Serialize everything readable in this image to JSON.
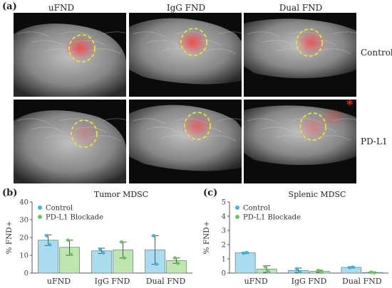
{
  "panel_a": {
    "label": "(a)",
    "columns": [
      "uFND",
      "IgG FND",
      "Dual FND"
    ],
    "rows": [
      "Control",
      "PD-L1"
    ],
    "asterisk": "*"
  },
  "panel_b": {
    "label": "(b)"
  },
  "panel_c": {
    "label": "(c)"
  },
  "colors": {
    "control_fill": "#a9dcef",
    "control_marker": "#3fb6d8",
    "blockade_fill": "#bfe5b0",
    "blockade_marker": "#6cc75a",
    "highlight_circle": "#e8e23a",
    "fluorescence": "#ff3030"
  },
  "chart_data": [
    {
      "type": "bar",
      "title": "Tumor MDSC",
      "ylabel": "% FND+",
      "xlabel": "",
      "categories": [
        "uFND",
        "IgG FND",
        "Dual FND"
      ],
      "ylim": [
        0,
        40
      ],
      "yticks": [
        0,
        10,
        20,
        30,
        40
      ],
      "legend": {
        "placement": "top-left"
      },
      "series": [
        {
          "name": "Control",
          "values": [
            18.5,
            12.5,
            13
          ],
          "err_low": [
            15.5,
            11,
            5
          ],
          "err_high": [
            21.5,
            14,
            21
          ],
          "points": [
            [
              21,
              16
            ],
            [
              13.5,
              11.5
            ],
            [
              21,
              5
            ]
          ]
        },
        {
          "name": "PD-L1 Blockade",
          "values": [
            14.5,
            13,
            7
          ],
          "err_low": [
            10,
            8.5,
            5.5
          ],
          "err_high": [
            18.5,
            17.5,
            8.5
          ],
          "points": [
            [
              18.5,
              10.5
            ],
            [
              17.5,
              8.5
            ],
            [
              8.5,
              5.5
            ]
          ]
        }
      ]
    },
    {
      "type": "bar",
      "title": "Splenic MDSC",
      "ylabel": "% FND+",
      "xlabel": "",
      "categories": [
        "uFND",
        "IgG FND",
        "Dual FND"
      ],
      "ylim": [
        0,
        5
      ],
      "yticks": [
        0,
        1,
        2,
        3,
        4,
        5
      ],
      "legend": {
        "placement": "top-left"
      },
      "series": [
        {
          "name": "Control",
          "values": [
            1.42,
            0.18,
            0.4
          ],
          "err_low": [
            1.38,
            0.05,
            0.35
          ],
          "err_high": [
            1.46,
            0.35,
            0.45
          ],
          "points": [
            [
              1.4,
              1.44
            ],
            [
              0.3,
              0.08
            ],
            [
              0.38,
              0.42
            ]
          ]
        },
        {
          "name": "PD-L1 Blockade",
          "values": [
            0.28,
            0.12,
            0.04
          ],
          "err_low": [
            0.05,
            0.05,
            0.0
          ],
          "err_high": [
            0.52,
            0.2,
            0.08
          ],
          "points": [
            [
              0.45,
              0.1
            ],
            [
              0.18,
              0.06
            ],
            [
              0.06,
              0.02
            ]
          ]
        }
      ]
    }
  ]
}
